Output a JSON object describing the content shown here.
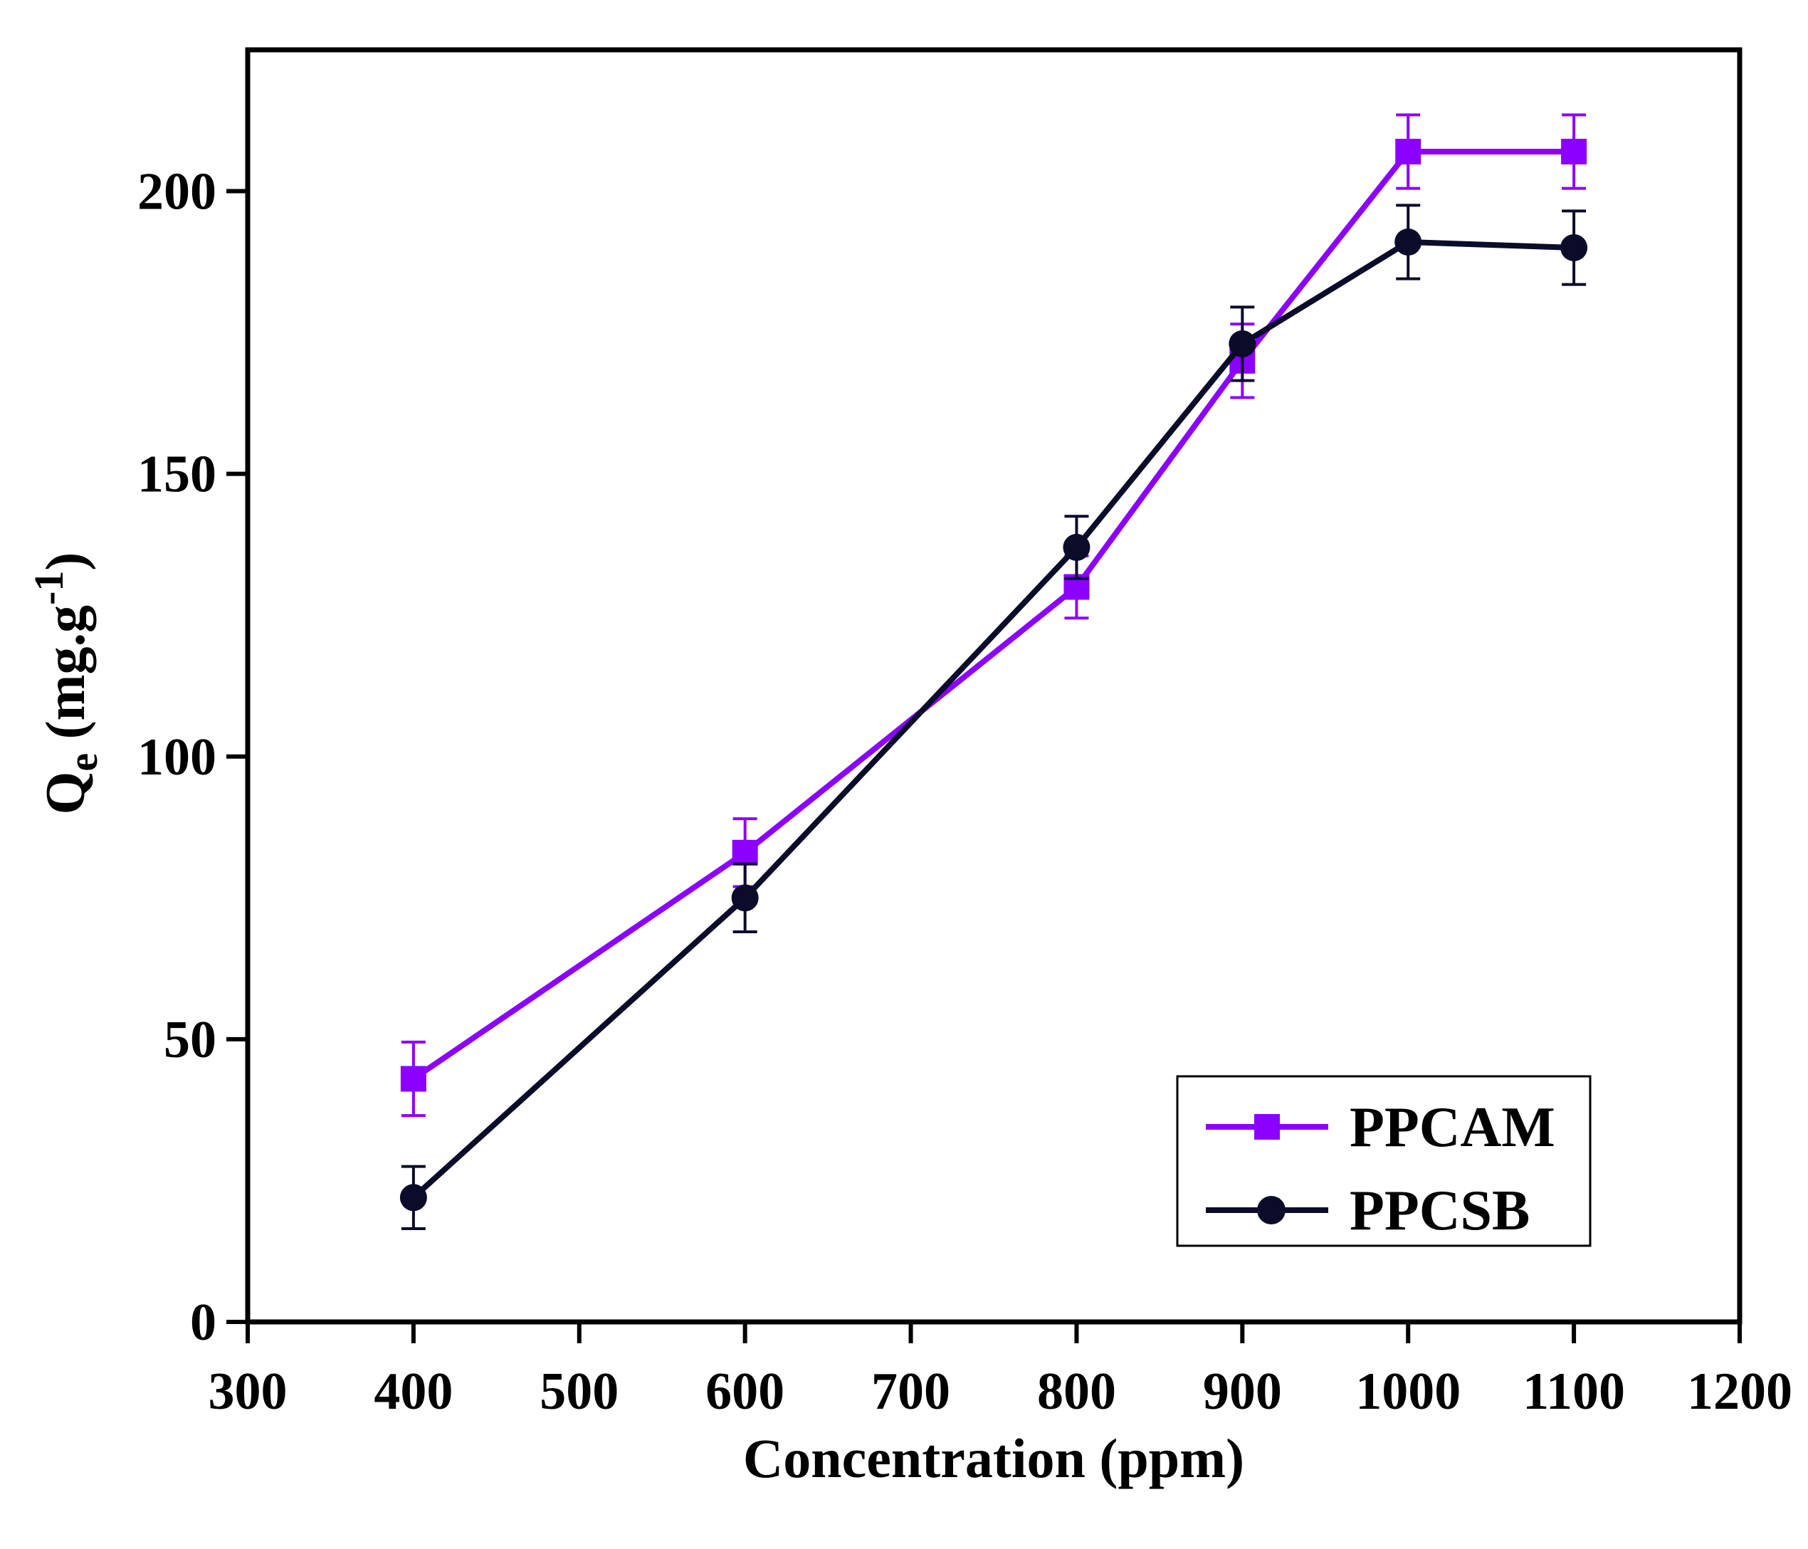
{
  "chart_data": {
    "type": "line",
    "title": "",
    "xlabel": "Concentration (ppm)",
    "ylabel": {
      "main": "Q",
      "subscript": "e",
      "unit_prefix": " (mg.g",
      "superscript": "-1",
      "unit_suffix": ")"
    },
    "xlim": [
      300,
      1200
    ],
    "ylim": [
      0,
      225
    ],
    "xticks": [
      "300",
      "400",
      "500",
      "600",
      "700",
      "800",
      "900",
      "1000",
      "1100",
      "1200"
    ],
    "yticks": [
      "0",
      "50",
      "100",
      "150",
      "200"
    ],
    "grid": false,
    "legend_position": "bottom-right",
    "series": [
      {
        "name": "PPCAM",
        "color": "#8B00FF",
        "marker": "square",
        "x": [
          400,
          600,
          800,
          900,
          1000,
          1100
        ],
        "y": [
          43,
          83,
          130,
          170,
          207,
          207
        ],
        "error": [
          6.5,
          6,
          5.5,
          6.5,
          6.5,
          6.5
        ]
      },
      {
        "name": "PPCSB",
        "color": "#0B0B2A",
        "marker": "circle",
        "x": [
          400,
          600,
          800,
          900,
          1000,
          1100
        ],
        "y": [
          22,
          75,
          137,
          173,
          191,
          190
        ],
        "error": [
          5.5,
          6,
          5.5,
          6.5,
          6.5,
          6.5
        ]
      }
    ]
  }
}
